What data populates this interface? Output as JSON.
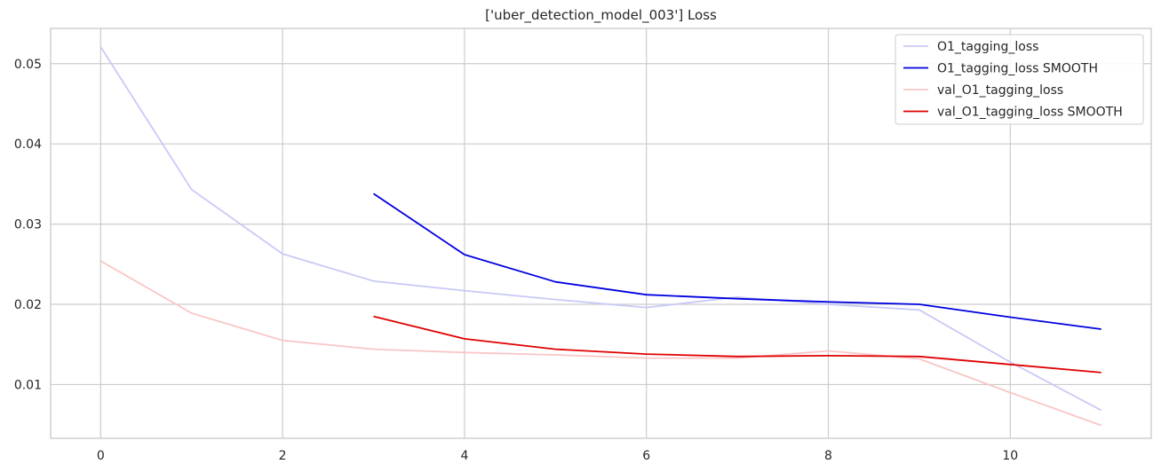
{
  "chart_data": {
    "type": "line",
    "title": "['uber_detection_model_003'] Loss",
    "xlabel": "",
    "ylabel": "",
    "xlim": [
      -0.55,
      11.55
    ],
    "ylim": [
      0.0033,
      0.0544
    ],
    "xticks": [
      0,
      2,
      4,
      6,
      8,
      10
    ],
    "yticks": [
      0.01,
      0.02,
      0.03,
      0.04,
      0.05
    ],
    "grid": true,
    "legend_position": "top-right",
    "series": [
      {
        "name": "O1_tagging_loss",
        "color": "#c9c9f7",
        "x": [
          0,
          1,
          2,
          3,
          4,
          5,
          6,
          7,
          8,
          9,
          10,
          11
        ],
        "y": [
          0.0521,
          0.0343,
          0.0263,
          0.0229,
          0.0217,
          0.0206,
          0.0196,
          0.0209,
          0.02,
          0.0193,
          0.0128,
          0.0068
        ]
      },
      {
        "name": "O1_tagging_loss SMOOTH",
        "color": "#0000e0",
        "x": [
          3,
          4,
          5,
          6,
          7,
          8,
          9,
          10,
          11
        ],
        "y": [
          0.0338,
          0.0262,
          0.0228,
          0.0212,
          0.0207,
          0.0203,
          0.02,
          0.0184,
          0.0169
        ]
      },
      {
        "name": "val_O1_tagging_loss",
        "color": "#f9c6c6",
        "x": [
          0,
          1,
          2,
          3,
          4,
          5,
          6,
          7,
          8,
          9,
          10,
          11
        ],
        "y": [
          0.0254,
          0.0189,
          0.0155,
          0.0144,
          0.014,
          0.0137,
          0.0133,
          0.0133,
          0.0142,
          0.0132,
          0.009,
          0.0049
        ]
      },
      {
        "name": "val_O1_tagging_loss SMOOTH",
        "color": "#e00000",
        "x": [
          3,
          4,
          5,
          6,
          7,
          8,
          9,
          10,
          11
        ],
        "y": [
          0.0185,
          0.0157,
          0.0144,
          0.0138,
          0.0135,
          0.0136,
          0.0135,
          0.0125,
          0.0115
        ]
      }
    ]
  }
}
